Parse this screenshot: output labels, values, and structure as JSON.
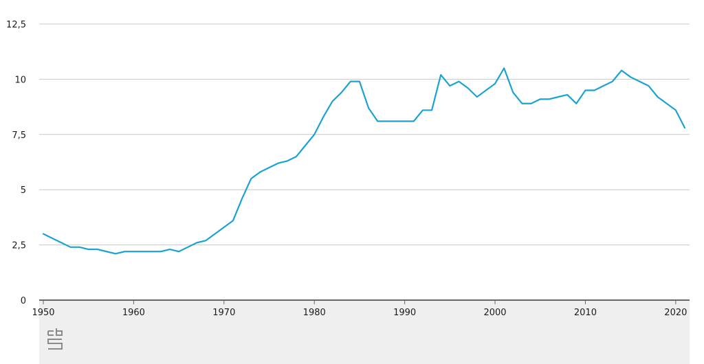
{
  "chart_data": {
    "type": "line",
    "title": "",
    "xlabel": "",
    "ylabel": "",
    "xlim": [
      1950,
      2021
    ],
    "ylim": [
      0,
      12.5
    ],
    "y_ticks": [
      0,
      2.5,
      5,
      7.5,
      10,
      12.5
    ],
    "y_tick_labels": [
      "0",
      "2,5",
      "5",
      "7,5",
      "10",
      "12,5"
    ],
    "x_ticks": [
      1950,
      1960,
      1970,
      1980,
      1990,
      2000,
      2010,
      2020
    ],
    "x_tick_labels": [
      "1950",
      "1960",
      "1970",
      "1980",
      "1990",
      "2000",
      "2010",
      "2020"
    ],
    "grid": true,
    "legend": "none",
    "series": [
      {
        "color": "#1aa3d1",
        "x": [
          1950,
          1951,
          1952,
          1953,
          1954,
          1955,
          1956,
          1957,
          1958,
          1959,
          1960,
          1961,
          1962,
          1963,
          1964,
          1965,
          1966,
          1967,
          1968,
          1969,
          1970,
          1971,
          1972,
          1973,
          1974,
          1975,
          1976,
          1977,
          1978,
          1979,
          1980,
          1981,
          1982,
          1983,
          1984,
          1985,
          1986,
          1987,
          1988,
          1989,
          1990,
          1991,
          1992,
          1993,
          1994,
          1995,
          1996,
          1997,
          1998,
          1999,
          2000,
          2001,
          2002,
          2003,
          2004,
          2005,
          2006,
          2007,
          2008,
          2009,
          2010,
          2011,
          2012,
          2013,
          2014,
          2015,
          2016,
          2017,
          2018,
          2019,
          2020,
          2021
        ],
        "values": [
          3.0,
          2.8,
          2.6,
          2.4,
          2.4,
          2.3,
          2.3,
          2.2,
          2.1,
          2.2,
          2.2,
          2.2,
          2.2,
          2.2,
          2.3,
          2.2,
          2.4,
          2.6,
          2.7,
          3.0,
          3.3,
          3.6,
          4.6,
          5.5,
          5.8,
          6.0,
          6.2,
          6.3,
          6.5,
          7.0,
          7.5,
          8.3,
          9.0,
          9.4,
          9.9,
          9.9,
          8.7,
          8.1,
          8.1,
          8.1,
          8.1,
          8.1,
          8.6,
          8.6,
          10.2,
          9.7,
          9.9,
          9.6,
          9.2,
          9.5,
          9.8,
          10.5,
          9.4,
          8.9,
          8.9,
          9.1,
          9.1,
          9.2,
          9.3,
          8.9,
          9.5,
          9.5,
          9.7,
          9.9,
          10.4,
          10.1,
          9.9,
          9.7,
          9.2,
          8.9,
          8.6,
          7.8
        ]
      }
    ]
  },
  "logo": {
    "text": "cbs",
    "icon": "cbs-logo-icon",
    "color": "#8a8a8a"
  },
  "colors": {
    "line": "#1aa3d1",
    "grid": "#c8c8c8",
    "axis": "#666666",
    "footer_band": "#efefef"
  }
}
